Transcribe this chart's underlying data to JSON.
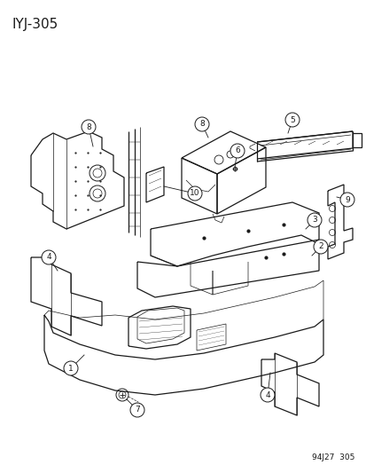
{
  "title": "IYJ-305",
  "footer": "94J27  305",
  "bg_color": "#ffffff",
  "line_color": "#1a1a1a",
  "title_fontsize": 11,
  "footer_fontsize": 6.5,
  "callout_fontsize": 6.5
}
